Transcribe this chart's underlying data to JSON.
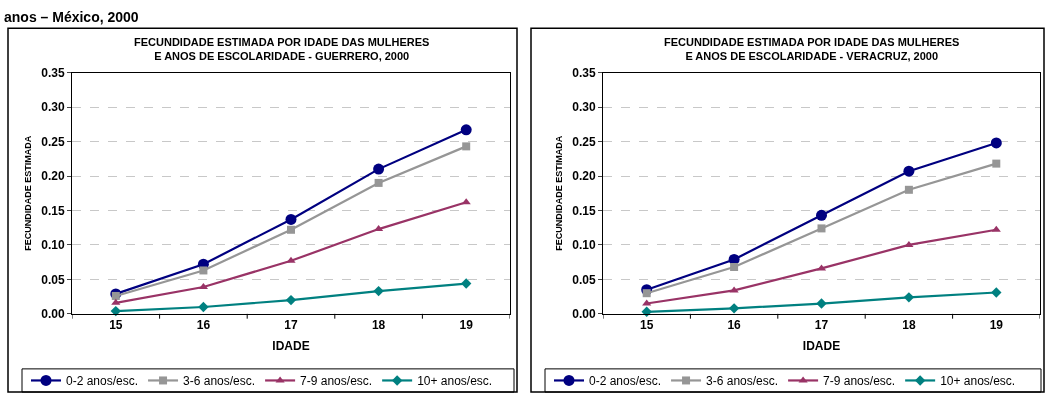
{
  "chart_data": [
    {
      "type": "line",
      "title": "FECUNDIDADE ESTIMADA POR IDADE DAS MULHERES\nE ANOS DE ESCOLARIDADE - GUERRERO, 2000",
      "xlabel": "IDADE",
      "ylabel": "FECUNDIDADE ESTIMADA",
      "annotations": [
        "anos – México, 2000"
      ],
      "categories": [
        "15",
        "16",
        "17",
        "18",
        "19"
      ],
      "ylim": [
        0,
        0.35
      ],
      "yticks": [
        {
          "value": 0,
          "label": "0.00"
        },
        {
          "value": 0.05,
          "label": "0.05"
        },
        {
          "value": 0.1,
          "label": "0.10"
        },
        {
          "value": 0.15,
          "label": "0.15"
        },
        {
          "value": 0.2,
          "label": "0.20"
        },
        {
          "value": 0.25,
          "label": "0.25"
        },
        {
          "value": 0.3,
          "label": "0.30"
        },
        {
          "value": 0.35,
          "label": "0.35"
        }
      ],
      "grid": "y",
      "legend": "bottom",
      "series": [
        {
          "name": "0-2 anos/esc.",
          "color": "#000080",
          "marker": "circle",
          "values": [
            0.029,
            0.072,
            0.137,
            0.21,
            0.267
          ]
        },
        {
          "name": "3-6 anos/esc.",
          "color": "#969696",
          "marker": "square",
          "values": [
            0.026,
            0.063,
            0.122,
            0.19,
            0.243
          ]
        },
        {
          "name": "7-9 anos/esc.",
          "color": "#993366",
          "marker": "triangle",
          "values": [
            0.016,
            0.039,
            0.077,
            0.123,
            0.162
          ]
        },
        {
          "name": "10+ anos/esc.",
          "color": "#008080",
          "marker": "diamond",
          "values": [
            0.004,
            0.01,
            0.02,
            0.033,
            0.044
          ]
        }
      ]
    },
    {
      "type": "line",
      "title": "FECUNDIDADE ESTIMADA POR IDADE DAS MULHERES\nE ANOS DE ESCOLARIDADE - VERACRUZ, 2000",
      "xlabel": "IDADE",
      "ylabel": "FECUNDIDADE ESTIMADA",
      "categories": [
        "15",
        "16",
        "17",
        "18",
        "19"
      ],
      "ylim": [
        0,
        0.35
      ],
      "yticks": [
        {
          "value": 0,
          "label": "0.00"
        },
        {
          "value": 0.05,
          "label": "0.05"
        },
        {
          "value": 0.1,
          "label": "0.10"
        },
        {
          "value": 0.15,
          "label": "0.15"
        },
        {
          "value": 0.2,
          "label": "0.20"
        },
        {
          "value": 0.25,
          "label": "0.25"
        },
        {
          "value": 0.3,
          "label": "0.30"
        },
        {
          "value": 0.35,
          "label": "0.35"
        }
      ],
      "grid": "y",
      "legend": "bottom",
      "series": [
        {
          "name": "0-2 anos/esc.",
          "color": "#000080",
          "marker": "circle",
          "values": [
            0.035,
            0.079,
            0.143,
            0.207,
            0.248
          ]
        },
        {
          "name": "3-6 anos/esc.",
          "color": "#969696",
          "marker": "square",
          "values": [
            0.03,
            0.068,
            0.124,
            0.18,
            0.218
          ]
        },
        {
          "name": "7-9 anos/esc.",
          "color": "#993366",
          "marker": "triangle",
          "values": [
            0.015,
            0.034,
            0.066,
            0.1,
            0.122
          ]
        },
        {
          "name": "10+ anos/esc.",
          "color": "#008080",
          "marker": "diamond",
          "values": [
            0.003,
            0.008,
            0.015,
            0.024,
            0.031
          ]
        }
      ]
    }
  ]
}
